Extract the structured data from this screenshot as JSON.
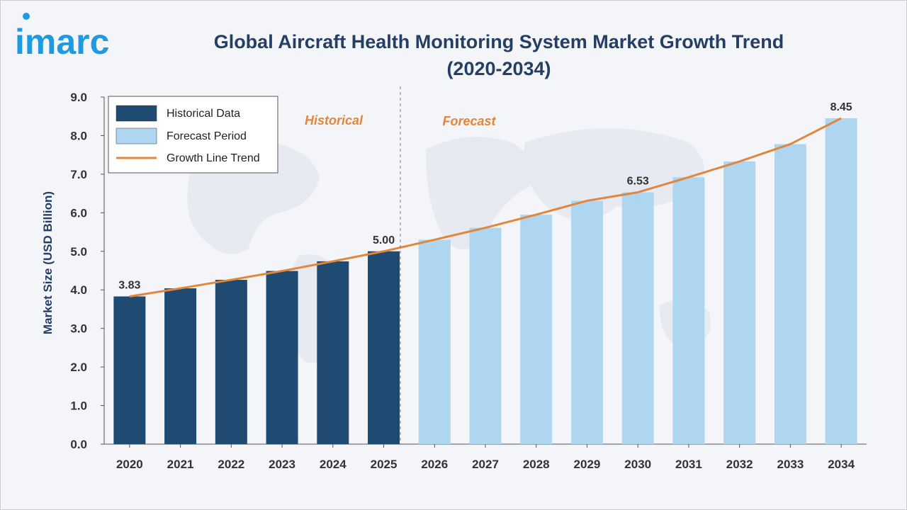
{
  "brand": {
    "logo_text": "imarc"
  },
  "colors": {
    "historical": "#1f4b72",
    "forecast": "#aed6f1",
    "trend": "#e0863d",
    "title": "#253e63",
    "logo": "#1e9be0",
    "region_label": "#e0863d"
  },
  "chart_data": {
    "type": "bar",
    "title": "Global Aircraft Health Monitoring System Market Growth Trend",
    "subtitle": "(2020-2034)",
    "xlabel": "",
    "ylabel": "Market Size (USD Billion)",
    "ylim": [
      0,
      9
    ],
    "y_ticks": [
      "0.0",
      "1.0",
      "2.0",
      "3.0",
      "4.0",
      "5.0",
      "6.0",
      "7.0",
      "8.0",
      "9.0"
    ],
    "categories": [
      "2020",
      "2021",
      "2022",
      "2023",
      "2024",
      "2025",
      "2026",
      "2027",
      "2028",
      "2029",
      "2030",
      "2031",
      "2032",
      "2033",
      "2034"
    ],
    "values": [
      3.83,
      4.04,
      4.26,
      4.49,
      4.74,
      5.0,
      5.3,
      5.61,
      5.95,
      6.31,
      6.53,
      6.92,
      7.33,
      7.78,
      8.45
    ],
    "historical_count": 6,
    "data_labels": [
      {
        "index": 0,
        "text": "3.83"
      },
      {
        "index": 5,
        "text": "5.00"
      },
      {
        "index": 10,
        "text": "6.53"
      },
      {
        "index": 14,
        "text": "8.45"
      }
    ],
    "region_labels": {
      "historical": "Historical",
      "forecast": "Forecast"
    },
    "legend": {
      "placement": "top-left",
      "items": [
        {
          "name": "Historical Data",
          "kind": "bar-dark"
        },
        {
          "name": "Forecast Period",
          "kind": "bar-light"
        },
        {
          "name": "Growth Line Trend",
          "kind": "line"
        }
      ]
    },
    "grid": false
  }
}
